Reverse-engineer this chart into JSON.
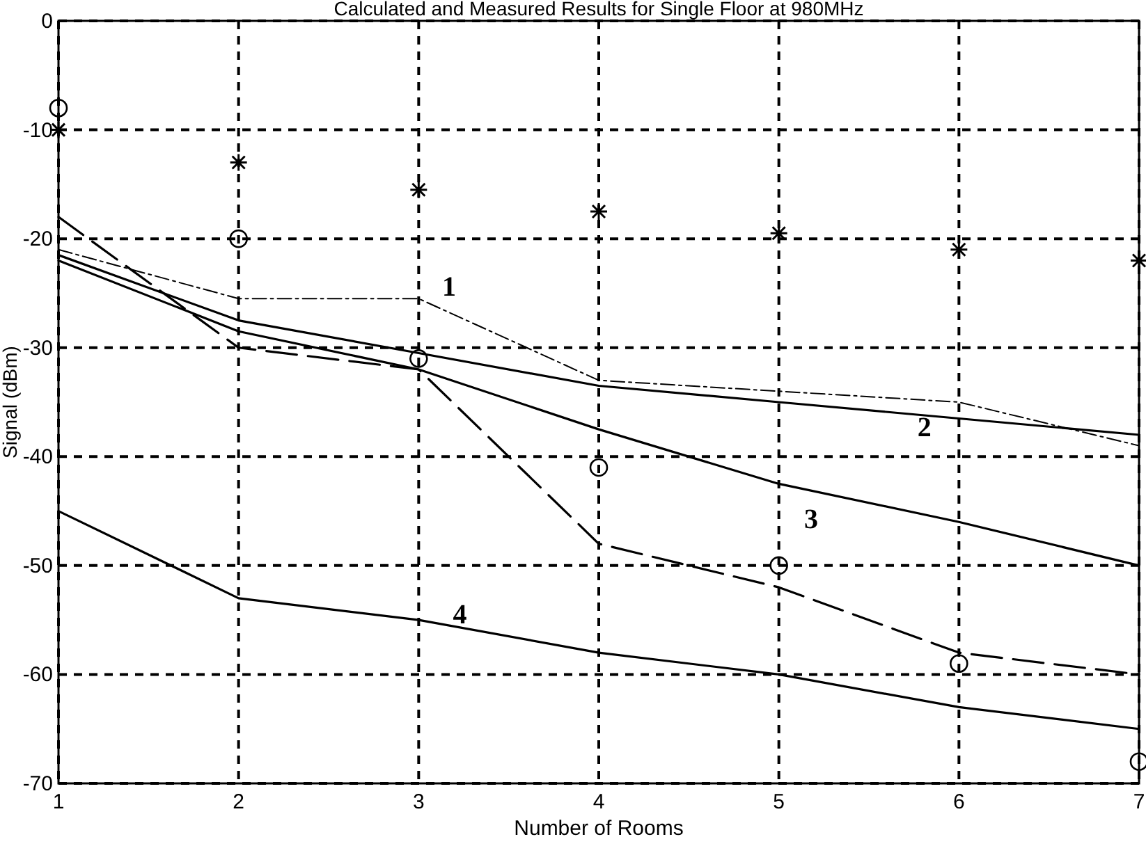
{
  "chart_data": {
    "type": "line",
    "title": "Calculated and Measured Results for Single Floor at 980MHz",
    "xlabel": "Number of Rooms",
    "ylabel": "Signal (dBm)",
    "x": [
      1,
      2,
      3,
      4,
      5,
      6,
      7
    ],
    "xlim": [
      1,
      7
    ],
    "xticks": [
      1,
      2,
      3,
      4,
      5,
      6,
      7
    ],
    "ylim": [
      -70,
      0
    ],
    "yticks": [
      -70,
      -60,
      -50,
      -40,
      -30,
      -20,
      -10,
      0
    ],
    "grid": true,
    "series": [
      {
        "type": "scatter",
        "marker": "cross",
        "color": "#000000",
        "values": [
          -10,
          -13,
          -15.5,
          -17.5,
          -19.5,
          -21,
          -22
        ]
      },
      {
        "type": "scatter",
        "marker": "circle",
        "color": "#000000",
        "values": [
          -8,
          -20,
          -31,
          -41,
          -50,
          -59,
          -68
        ]
      },
      {
        "line_style": "dotted",
        "color": "#000000",
        "values": [
          -21,
          -25.5,
          -25.5,
          -33,
          -34,
          -35,
          -39
        ]
      },
      {
        "line_style": "solid",
        "color": "#000000",
        "values": [
          -21.5,
          -27.5,
          -30.5,
          -33.5,
          -35,
          -36.5,
          -38
        ]
      },
      {
        "line_style": "solid",
        "color": "#000000",
        "values": [
          -22,
          -28.5,
          -32,
          -37.5,
          -42.5,
          -46,
          -50
        ]
      },
      {
        "line_style": "solid",
        "color": "#000000",
        "values": [
          -45,
          -53,
          -55,
          -58,
          -60,
          -63,
          -65
        ]
      },
      {
        "line_style": "dashed",
        "color": "#000000",
        "values": [
          -18,
          -30,
          -32,
          -48,
          -52,
          -58,
          -60
        ]
      }
    ],
    "annotations": [
      "1",
      "2",
      "3",
      "4"
    ]
  }
}
